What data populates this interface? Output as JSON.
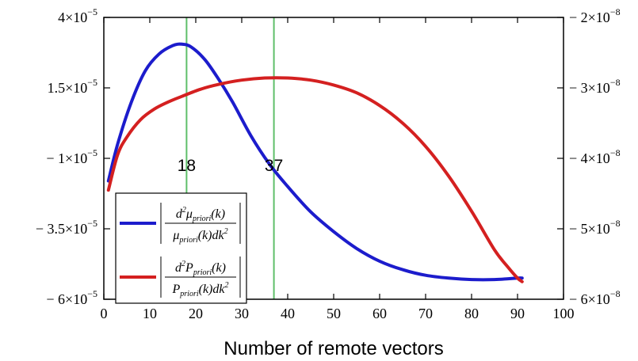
{
  "chart_data": {
    "type": "line",
    "xlabel": "Number of remote vectors",
    "xlim": [
      0,
      100
    ],
    "x_ticks": [
      "0",
      "10",
      "20",
      "30",
      "40",
      "50",
      "60",
      "70",
      "80",
      "90",
      "100"
    ],
    "ylim_left": [
      -6e-05,
      4e-05
    ],
    "y_left_ticks": [
      {
        "base": "4×10",
        "exp": "−5"
      },
      {
        "base": "1.5×10",
        "exp": "−5"
      },
      {
        "base": "− 1×10",
        "exp": "−5"
      },
      {
        "base": "− 3.5×10",
        "exp": "−5"
      },
      {
        "base": "− 6×10",
        "exp": "−5"
      }
    ],
    "ylim_right": [
      -6e-08,
      -2e-08
    ],
    "y_right_ticks": [
      {
        "base": "− 2×10",
        "exp": "−8"
      },
      {
        "base": "− 3×10",
        "exp": "−8"
      },
      {
        "base": "− 4×10",
        "exp": "−8"
      },
      {
        "base": "− 5×10",
        "exp": "−8"
      },
      {
        "base": "− 6×10",
        "exp": "−8"
      }
    ],
    "vlines": [
      {
        "x": 18,
        "label": "18",
        "color": "#5fbf6a"
      },
      {
        "x": 37,
        "label": "37",
        "color": "#5fbf6a"
      }
    ],
    "series": [
      {
        "axis": "left",
        "color": "#1c1ccc",
        "legend": {
          "num_pre": "d",
          "num_sup": "2",
          "num_sym": "μ",
          "num_sub": "priori",
          "num_post": "(k)",
          "den_sym": "μ",
          "den_sub": "priori",
          "den_post": "(k)dk",
          "den_sup": "2"
        },
        "x": [
          1,
          3,
          6,
          9,
          12,
          15,
          17,
          19,
          22,
          25,
          28,
          32,
          36,
          40,
          45,
          50,
          55,
          60,
          65,
          70,
          75,
          80,
          85,
          90,
          91
        ],
        "y": [
          -1.8e-05,
          -5e-06,
          1e-05,
          2.1e-05,
          2.7e-05,
          3e-05,
          3.05e-05,
          2.95e-05,
          2.5e-05,
          1.8e-05,
          1e-05,
          -2e-06,
          -1.2e-05,
          -2e-05,
          -2.9e-05,
          -3.6e-05,
          -4.2e-05,
          -4.65e-05,
          -4.95e-05,
          -5.15e-05,
          -5.25e-05,
          -5.3e-05,
          -5.3e-05,
          -5.25e-05,
          -5.25e-05
        ]
      },
      {
        "axis": "right",
        "color": "#d42020",
        "legend": {
          "num_pre": "d",
          "num_sup": "2",
          "num_sym": "P",
          "num_sub": "priori",
          "num_post": "(k)",
          "den_sym": "P",
          "den_sub": "priori",
          "den_post": "(k)dk",
          "den_sup": "2"
        },
        "x": [
          1,
          3,
          5,
          8,
          11,
          14,
          17,
          21,
          25,
          30,
          35,
          40,
          45,
          50,
          55,
          60,
          65,
          70,
          75,
          80,
          85,
          88,
          90,
          91
        ],
        "y": [
          -4.45e-08,
          -3.95e-08,
          -3.7e-08,
          -3.45e-08,
          -3.3e-08,
          -3.2e-08,
          -3.12e-08,
          -3.02e-08,
          -2.95e-08,
          -2.89e-08,
          -2.86e-08,
          -2.86e-08,
          -2.89e-08,
          -2.96e-08,
          -3.07e-08,
          -3.25e-08,
          -3.5e-08,
          -3.83e-08,
          -4.25e-08,
          -4.75e-08,
          -5.3e-08,
          -5.55e-08,
          -5.7e-08,
          -5.75e-08
        ]
      }
    ]
  }
}
